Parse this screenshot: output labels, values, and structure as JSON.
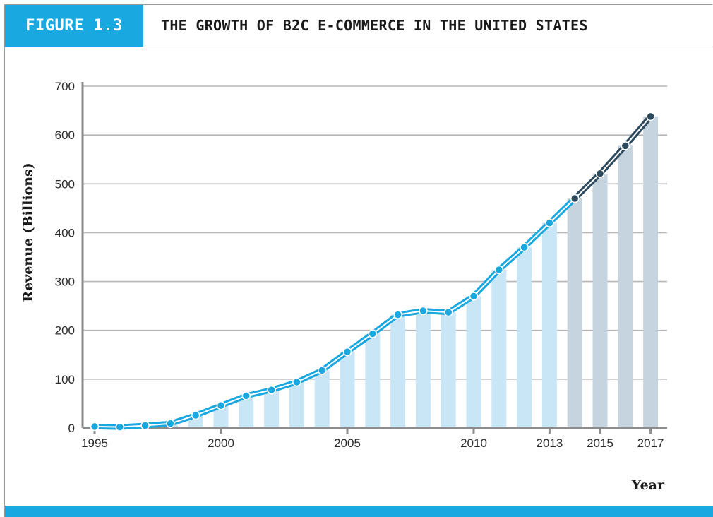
{
  "figure": {
    "label": "FIGURE 1.3",
    "title": "THE GROWTH OF B2C E-COMMERCE IN THE UNITED STATES",
    "accent_color": "#1aa8e0"
  },
  "chart_data": {
    "type": "bar",
    "ylabel": "Revenue (Billions)",
    "xlabel": "Year",
    "ylim": [
      0,
      700
    ],
    "yticks": [
      0,
      100,
      200,
      300,
      400,
      500,
      600,
      700
    ],
    "x_tick_labels": [
      "1995",
      "2000",
      "2005",
      "2010",
      "2013",
      "2015",
      "2017"
    ],
    "grid": true,
    "categories": [
      "1995",
      "1996",
      "1997",
      "1998",
      "1999",
      "2000",
      "2001",
      "2002",
      "2003",
      "2004",
      "2005",
      "2006",
      "2007",
      "2008",
      "2009",
      "2010",
      "2011",
      "2012",
      "2013",
      "2014",
      "2015",
      "2016",
      "2017"
    ],
    "values": [
      3,
      2,
      5,
      9,
      26,
      46,
      66,
      78,
      94,
      118,
      156,
      193,
      232,
      240,
      237,
      270,
      324,
      370,
      420,
      470,
      521,
      578,
      638
    ],
    "projected_from": "2014",
    "overlay_line": true,
    "colors": {
      "bar_actual": "#c9e6f6",
      "bar_projected": "#c6d4df",
      "line_actual": "#1aa8e0",
      "line_projected": "#2e4a5e",
      "grid": "#b5b5b5"
    }
  }
}
